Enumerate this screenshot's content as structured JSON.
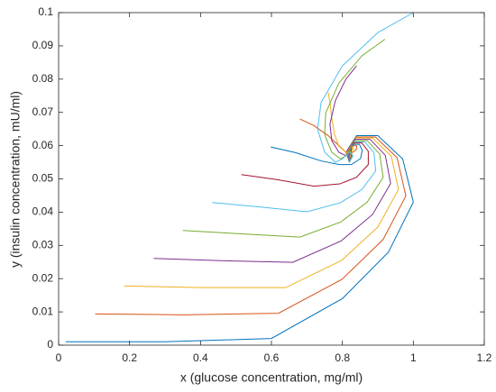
{
  "chart_data": {
    "type": "line",
    "xlabel": "x (glucose concentration, mg/ml)",
    "ylabel": "y (insulin concentration, mU/ml)",
    "xlim": [
      0,
      1.2
    ],
    "ylim": [
      0,
      0.1
    ],
    "xticks": [
      0,
      0.2,
      0.4,
      0.6,
      0.8,
      1,
      1.2
    ],
    "yticks": [
      0,
      0.01,
      0.02,
      0.03,
      0.04,
      0.05,
      0.06,
      0.07,
      0.08,
      0.09,
      0.1
    ],
    "series": [
      {
        "color": "#0072bd",
        "x": [
          0.02,
          0.3,
          0.6,
          0.8,
          0.93,
          1.0,
          0.97,
          0.9,
          0.84,
          0.81,
          0.82
        ],
        "y": [
          0.001,
          0.001,
          0.002,
          0.014,
          0.028,
          0.043,
          0.056,
          0.063,
          0.063,
          0.058,
          0.055
        ]
      },
      {
        "color": "#d95319",
        "x": [
          0.103,
          0.353,
          0.62,
          0.799,
          0.915,
          0.979,
          0.954,
          0.893,
          0.839,
          0.811,
          0.82
        ],
        "y": [
          0.0094,
          0.0091,
          0.0096,
          0.0198,
          0.0318,
          0.0449,
          0.0564,
          0.0626,
          0.0626,
          0.0579,
          0.055
        ]
      },
      {
        "color": "#edb120",
        "x": [
          0.185,
          0.405,
          0.64,
          0.798,
          0.9,
          0.958,
          0.938,
          0.885,
          0.838,
          0.813,
          0.82
        ],
        "y": [
          0.0178,
          0.0173,
          0.0173,
          0.0255,
          0.0355,
          0.0468,
          0.0568,
          0.0623,
          0.0623,
          0.0578,
          0.055
        ]
      },
      {
        "color": "#7e2f8e",
        "x": [
          0.268,
          0.458,
          0.66,
          0.796,
          0.885,
          0.936,
          0.921,
          0.878,
          0.836,
          0.814,
          0.82
        ],
        "y": [
          0.0261,
          0.0254,
          0.0249,
          0.0313,
          0.0393,
          0.0486,
          0.0571,
          0.0619,
          0.0619,
          0.0576,
          0.055
        ]
      },
      {
        "color": "#77ac30",
        "x": [
          0.35,
          0.51,
          0.68,
          0.795,
          0.87,
          0.915,
          0.905,
          0.87,
          0.835,
          0.815,
          0.82
        ],
        "y": [
          0.0345,
          0.0335,
          0.0325,
          0.037,
          0.043,
          0.0505,
          0.0575,
          0.0615,
          0.0615,
          0.0575,
          0.055
        ]
      },
      {
        "color": "#4dbeee",
        "x": [
          0.433,
          0.563,
          0.7,
          0.794,
          0.855,
          0.894,
          0.889,
          0.863,
          0.834,
          0.816,
          0.82
        ],
        "y": [
          0.0429,
          0.0416,
          0.0401,
          0.0428,
          0.0468,
          0.0524,
          0.0579,
          0.0611,
          0.0611,
          0.0574,
          0.055
        ]
      },
      {
        "color": "#a2142f",
        "x": [
          0.515,
          0.615,
          0.72,
          0.793,
          0.84,
          0.873,
          0.873,
          0.855,
          0.833,
          0.818,
          0.82
        ],
        "y": [
          0.0513,
          0.0498,
          0.0478,
          0.0485,
          0.0505,
          0.0543,
          0.0583,
          0.0608,
          0.0608,
          0.0573,
          0.055
        ]
      },
      {
        "color": "#0072bd",
        "x": [
          0.598,
          0.668,
          0.74,
          0.791,
          0.825,
          0.851,
          0.856,
          0.848,
          0.831,
          0.819,
          0.82
        ],
        "y": [
          0.0596,
          0.0579,
          0.0554,
          0.0543,
          0.0543,
          0.0561,
          0.0586,
          0.0604,
          0.0604,
          0.0571,
          0.055
        ]
      },
      {
        "color": "#d95319",
        "x": [
          0.68,
          0.72,
          0.76,
          0.79,
          0.81,
          0.83,
          0.84,
          0.84,
          0.83,
          0.82,
          0.82
        ],
        "y": [
          0.068,
          0.066,
          0.063,
          0.06,
          0.058,
          0.058,
          0.059,
          0.06,
          0.06,
          0.057,
          0.055
        ]
      },
      {
        "color": "#edb120",
        "x": [
          0.76,
          0.765,
          0.77,
          0.778,
          0.79,
          0.81,
          0.825,
          0.83,
          0.828,
          0.823,
          0.82
        ],
        "y": [
          0.076,
          0.073,
          0.0683,
          0.0633,
          0.0598,
          0.058,
          0.058,
          0.059,
          0.0595,
          0.057,
          0.055
        ]
      },
      {
        "color": "#7e2f8e",
        "x": [
          0.84,
          0.81,
          0.78,
          0.765,
          0.77,
          0.79,
          0.81,
          0.82,
          0.825,
          0.825,
          0.82
        ],
        "y": [
          0.084,
          0.08,
          0.0735,
          0.0665,
          0.0615,
          0.058,
          0.057,
          0.058,
          0.059,
          0.057,
          0.055
        ]
      },
      {
        "color": "#77ac30",
        "x": [
          0.92,
          0.855,
          0.79,
          0.753,
          0.75,
          0.77,
          0.795,
          0.81,
          0.823,
          0.828,
          0.82
        ],
        "y": [
          0.092,
          0.087,
          0.0788,
          0.0698,
          0.0633,
          0.058,
          0.056,
          0.057,
          0.0585,
          0.057,
          0.055
        ]
      },
      {
        "color": "#4dbeee",
        "x": [
          1.0,
          0.9,
          0.8,
          0.74,
          0.73,
          0.75,
          0.78,
          0.8,
          0.82,
          0.83,
          0.82
        ],
        "y": [
          0.1,
          0.094,
          0.084,
          0.073,
          0.065,
          0.058,
          0.055,
          0.056,
          0.058,
          0.057,
          0.055
        ]
      }
    ]
  }
}
